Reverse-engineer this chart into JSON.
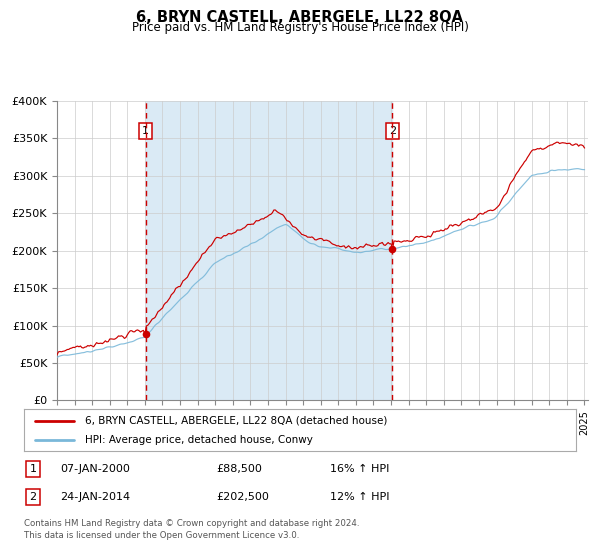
{
  "title": "6, BRYN CASTELL, ABERGELE, LL22 8QA",
  "subtitle": "Price paid vs. HM Land Registry's House Price Index (HPI)",
  "hpi_color": "#7ab8d9",
  "sale_color": "#cc0000",
  "bg_fill": "#daeaf5",
  "sale1_date_num": 2000.04,
  "sale1_price": 88500,
  "sale2_date_num": 2014.07,
  "sale2_price": 202500,
  "legend_sale": "6, BRYN CASTELL, ABERGELE, LL22 8QA (detached house)",
  "legend_hpi": "HPI: Average price, detached house, Conwy",
  "table_row1": [
    "1",
    "07-JAN-2000",
    "£88,500",
    "16% ↑ HPI"
  ],
  "table_row2": [
    "2",
    "24-JAN-2014",
    "£202,500",
    "12% ↑ HPI"
  ],
  "footnote1": "Contains HM Land Registry data © Crown copyright and database right 2024.",
  "footnote2": "This data is licensed under the Open Government Licence v3.0.",
  "ylim": [
    0,
    400000
  ],
  "yticks": [
    0,
    50000,
    100000,
    150000,
    200000,
    250000,
    300000,
    350000,
    400000
  ],
  "ytick_labels": [
    "£0",
    "£50K",
    "£100K",
    "£150K",
    "£200K",
    "£250K",
    "£300K",
    "£350K",
    "£400K"
  ],
  "xstart": 1995.0,
  "xend": 2025.2
}
